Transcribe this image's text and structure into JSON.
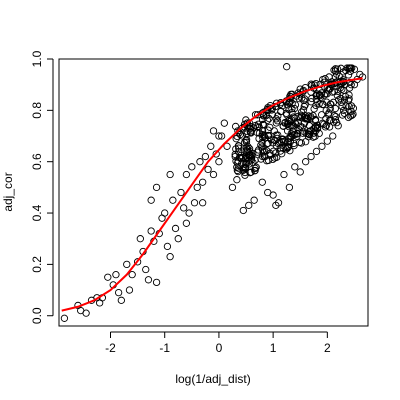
{
  "chart_data": {
    "type": "scatter",
    "xlabel": "log(1/adj_dist)",
    "ylabel": "adj_cor",
    "xlim": [
      -2.95,
      2.75
    ],
    "ylim": [
      -0.04,
      1.0
    ],
    "x_ticks": [
      -2,
      -1,
      0,
      1,
      2
    ],
    "x_tick_labels": [
      "-2",
      "-1",
      "0",
      "1",
      "2"
    ],
    "y_ticks": [
      0.0,
      0.2,
      0.4,
      0.6,
      0.8,
      1.0
    ],
    "y_tick_labels": [
      "0.0",
      "0.2",
      "0.4",
      "0.6",
      "0.8",
      "1.0"
    ],
    "grid": false,
    "series": [
      {
        "kind": "points",
        "marker": "open-circle",
        "color": "#000000",
        "points": [
          [
            -2.85,
            -0.01
          ],
          [
            -2.6,
            0.04
          ],
          [
            -2.55,
            0.02
          ],
          [
            -2.45,
            0.01
          ],
          [
            -2.35,
            0.06
          ],
          [
            -2.25,
            0.07
          ],
          [
            -2.2,
            0.05
          ],
          [
            -2.15,
            0.07
          ],
          [
            -2.05,
            0.15
          ],
          [
            -1.95,
            0.12
          ],
          [
            -1.9,
            0.16
          ],
          [
            -1.85,
            0.09
          ],
          [
            -1.8,
            0.06
          ],
          [
            -1.7,
            0.2
          ],
          [
            -1.65,
            0.1
          ],
          [
            -1.6,
            0.16
          ],
          [
            -1.5,
            0.21
          ],
          [
            -1.45,
            0.3
          ],
          [
            -1.4,
            0.25
          ],
          [
            -1.35,
            0.18
          ],
          [
            -1.3,
            0.14
          ],
          [
            -1.25,
            0.33
          ],
          [
            -1.2,
            0.29
          ],
          [
            -1.15,
            0.13
          ],
          [
            -1.1,
            0.32
          ],
          [
            -1.05,
            0.38
          ],
          [
            -1.0,
            0.4
          ],
          [
            -0.95,
            0.27
          ],
          [
            -0.9,
            0.23
          ],
          [
            -0.85,
            0.45
          ],
          [
            -0.8,
            0.34
          ],
          [
            -0.75,
            0.3
          ],
          [
            -0.7,
            0.48
          ],
          [
            -0.65,
            0.42
          ],
          [
            -0.6,
            0.55
          ],
          [
            -0.55,
            0.4
          ],
          [
            -0.5,
            0.58
          ],
          [
            -0.45,
            0.44
          ],
          [
            -0.4,
            0.5
          ],
          [
            -0.35,
            0.6
          ],
          [
            -0.3,
            0.52
          ],
          [
            -0.25,
            0.62
          ],
          [
            -0.2,
            0.57
          ],
          [
            -0.15,
            0.66
          ],
          [
            -0.1,
            0.55
          ],
          [
            -0.05,
            0.63
          ],
          [
            0.0,
            0.6
          ],
          [
            0.05,
            0.7
          ],
          [
            -1.25,
            0.45
          ],
          [
            -1.15,
            0.5
          ],
          [
            -0.9,
            0.55
          ],
          [
            -0.6,
            0.36
          ],
          [
            -0.3,
            0.44
          ],
          [
            0.15,
            0.66
          ],
          [
            0.25,
            0.5
          ],
          [
            0.35,
            0.72
          ],
          [
            0.45,
            0.41
          ],
          [
            0.55,
            0.43
          ],
          [
            0.65,
            0.45
          ],
          [
            0.8,
            0.52
          ],
          [
            0.9,
            0.48
          ],
          [
            1.0,
            0.47
          ],
          [
            1.05,
            0.43
          ],
          [
            1.1,
            0.44
          ],
          [
            1.2,
            0.55
          ],
          [
            1.3,
            0.5
          ],
          [
            1.4,
            0.58
          ],
          [
            1.5,
            0.56
          ],
          [
            1.6,
            0.6
          ],
          [
            1.7,
            0.62
          ],
          [
            1.8,
            0.64
          ],
          [
            1.9,
            0.66
          ],
          [
            2.0,
            0.68
          ],
          [
            2.1,
            0.7
          ],
          [
            2.2,
            0.74
          ],
          [
            2.3,
            0.8
          ],
          [
            2.4,
            0.86
          ],
          [
            2.5,
            0.9
          ],
          [
            2.55,
            0.92
          ],
          [
            2.6,
            0.94
          ],
          [
            2.65,
            0.93
          ],
          [
            2.5,
            0.96
          ],
          [
            2.3,
            0.95
          ],
          [
            2.15,
            0.93
          ],
          [
            1.25,
            0.97
          ],
          [
            0.1,
            0.75
          ],
          [
            0.0,
            0.7
          ],
          [
            -0.1,
            0.72
          ]
        ]
      },
      {
        "kind": "curve",
        "color": "#ff0000",
        "points": [
          [
            -2.9,
            0.02
          ],
          [
            -2.6,
            0.035
          ],
          [
            -2.3,
            0.06
          ],
          [
            -2.0,
            0.1
          ],
          [
            -1.7,
            0.16
          ],
          [
            -1.4,
            0.24
          ],
          [
            -1.1,
            0.33
          ],
          [
            -0.8,
            0.42
          ],
          [
            -0.5,
            0.51
          ],
          [
            -0.2,
            0.6
          ],
          [
            0.1,
            0.67
          ],
          [
            0.4,
            0.73
          ],
          [
            0.7,
            0.78
          ],
          [
            1.0,
            0.82
          ],
          [
            1.3,
            0.85
          ],
          [
            1.6,
            0.875
          ],
          [
            1.9,
            0.895
          ],
          [
            2.2,
            0.91
          ],
          [
            2.5,
            0.92
          ],
          [
            2.65,
            0.925
          ]
        ]
      }
    ]
  }
}
